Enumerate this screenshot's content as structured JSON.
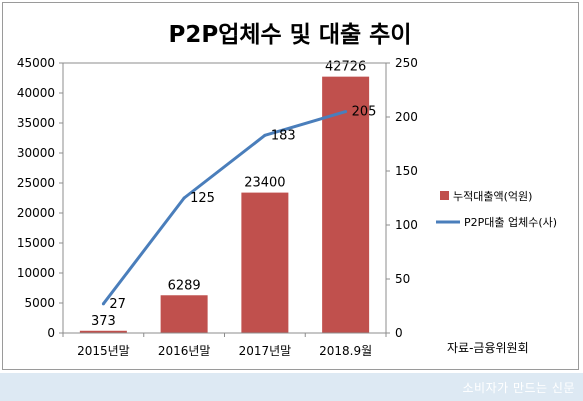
{
  "chart_data": {
    "type": "bar",
    "title": "P2P업체수 및 대출 추이",
    "categories": [
      "2015년말",
      "2016년말",
      "2017년말",
      "2018.9월"
    ],
    "series": [
      {
        "name": "누적대출액(억원)",
        "type": "bar",
        "axis": "left",
        "values": [
          373,
          6289,
          23400,
          42726
        ],
        "color": "#c0504d"
      },
      {
        "name": "P2P대출 업체수(사)",
        "type": "line",
        "axis": "right",
        "values": [
          27,
          125,
          183,
          205
        ],
        "color": "#4a7ebb"
      }
    ],
    "y_left": {
      "ylim": [
        0,
        45000
      ],
      "ticks": [
        "0",
        "5000",
        "10000",
        "15000",
        "20000",
        "25000",
        "30000",
        "35000",
        "40000",
        "45000"
      ]
    },
    "y_right": {
      "ylim": [
        0,
        250
      ],
      "ticks": [
        "0",
        "50",
        "100",
        "150",
        "200",
        "250"
      ]
    },
    "grid": false,
    "legend": "right",
    "source": "자료-금융위원회"
  },
  "footer": {
    "text": "소비자가 만드는 신문"
  }
}
